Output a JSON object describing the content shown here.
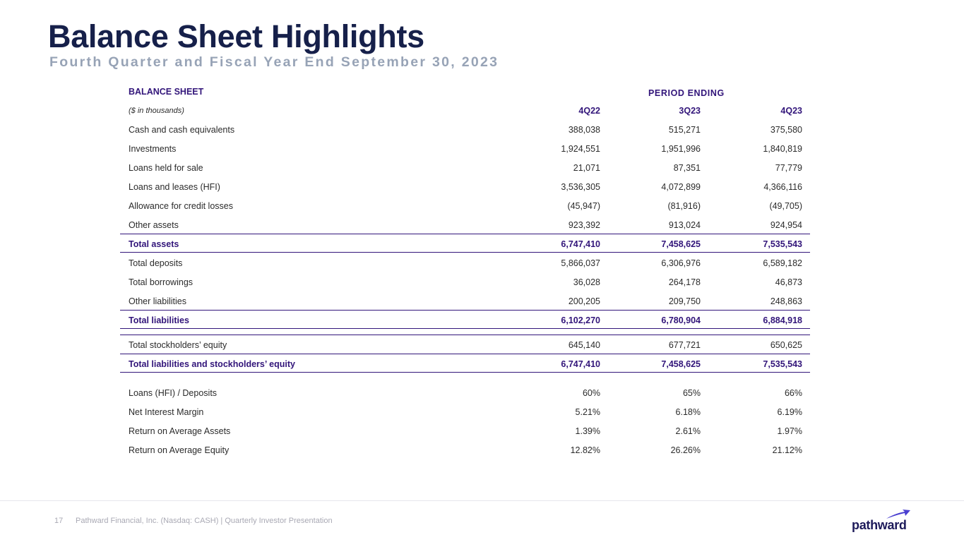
{
  "header": {
    "title": "Balance Sheet Highlights",
    "subtitle": "Fourth Quarter and Fiscal Year End September 30, 2023"
  },
  "table": {
    "section_label": "BALANCE SHEET",
    "period_label": "PERIOD ENDING",
    "units_label": "($ in thousands)",
    "columns": [
      "4Q22",
      "3Q23",
      "4Q23"
    ],
    "asset_rows": [
      {
        "label": "Cash and cash equivalents",
        "values": [
          "388,038",
          "515,271",
          "375,580"
        ]
      },
      {
        "label": "Investments",
        "values": [
          "1,924,551",
          "1,951,996",
          "1,840,819"
        ]
      },
      {
        "label": "Loans held for sale",
        "values": [
          "21,071",
          "87,351",
          "77,779"
        ]
      },
      {
        "label": "Loans and leases (HFI)",
        "values": [
          "3,536,305",
          "4,072,899",
          "4,366,116"
        ]
      },
      {
        "label": "Allowance for credit losses",
        "values": [
          "(45,947)",
          "(81,916)",
          "(49,705)"
        ]
      },
      {
        "label": "Other assets",
        "values": [
          "923,392",
          "913,024",
          "924,954"
        ]
      }
    ],
    "total_assets": {
      "label": "Total assets",
      "values": [
        "6,747,410",
        "7,458,625",
        "7,535,543"
      ]
    },
    "liability_rows": [
      {
        "label": "Total deposits",
        "values": [
          "5,866,037",
          "6,306,976",
          "6,589,182"
        ]
      },
      {
        "label": "Total borrowings",
        "values": [
          "36,028",
          "264,178",
          "46,873"
        ]
      },
      {
        "label": "Other liabilities",
        "values": [
          "200,205",
          "209,750",
          "248,863"
        ]
      }
    ],
    "total_liabilities": {
      "label": "Total liabilities",
      "values": [
        "6,102,270",
        "6,780,904",
        "6,884,918"
      ]
    },
    "equity": {
      "label": "Total stockholders’ equity",
      "values": [
        "645,140",
        "677,721",
        "650,625"
      ]
    },
    "total_liabilities_equity": {
      "label": "Total liabilities and stockholders’ equity",
      "values": [
        "6,747,410",
        "7,458,625",
        "7,535,543"
      ]
    },
    "ratio_rows": [
      {
        "label": "Loans (HFI) / Deposits",
        "values": [
          "60%",
          "65%",
          "66%"
        ]
      },
      {
        "label": "Net Interest Margin",
        "values": [
          "5.21%",
          "6.18%",
          "6.19%"
        ]
      },
      {
        "label": "Return on Average Assets",
        "values": [
          "1.39%",
          "2.61%",
          "1.97%"
        ]
      },
      {
        "label": "Return on Average Equity",
        "values": [
          "12.82%",
          "26.26%",
          "21.12%"
        ]
      }
    ]
  },
  "footer": {
    "page_number": "17",
    "text": "Pathward Financial, Inc. (Nasdaq: CASH) | Quarterly Investor Presentation"
  },
  "logo": {
    "text": "pathward",
    "mark_icon": "swoosh-icon"
  },
  "colors": {
    "title": "#16204a",
    "subtitle": "#97a3b6",
    "accent": "#32157a",
    "footer": "#a9a9b4"
  }
}
